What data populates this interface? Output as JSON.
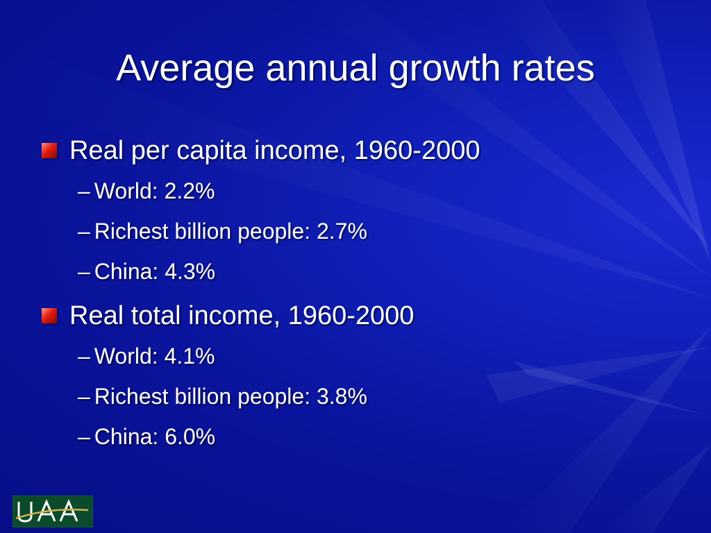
{
  "slide": {
    "title": "Average annual growth rates",
    "sections": [
      {
        "heading": "Real per capita income, 1960-2000",
        "items": [
          {
            "text": "World: 2.2%"
          },
          {
            "text": "Richest billion people: 2.7%"
          },
          {
            "text": "China: 4.3%"
          }
        ]
      },
      {
        "heading": "Real total income, 1960-2000",
        "items": [
          {
            "text": "World: 4.1%"
          },
          {
            "text": "Richest billion people: 3.8%"
          },
          {
            "text": "China: 6.0%"
          }
        ]
      }
    ],
    "logo_text": "UAA",
    "colors": {
      "background": "#0a149c",
      "text": "#ffffff",
      "bullet": "#e21c10",
      "logo_bg": "#0b4a2a",
      "logo_accent": "#d4b24a"
    },
    "bullet_icon": "red-square-bullet-icon"
  }
}
